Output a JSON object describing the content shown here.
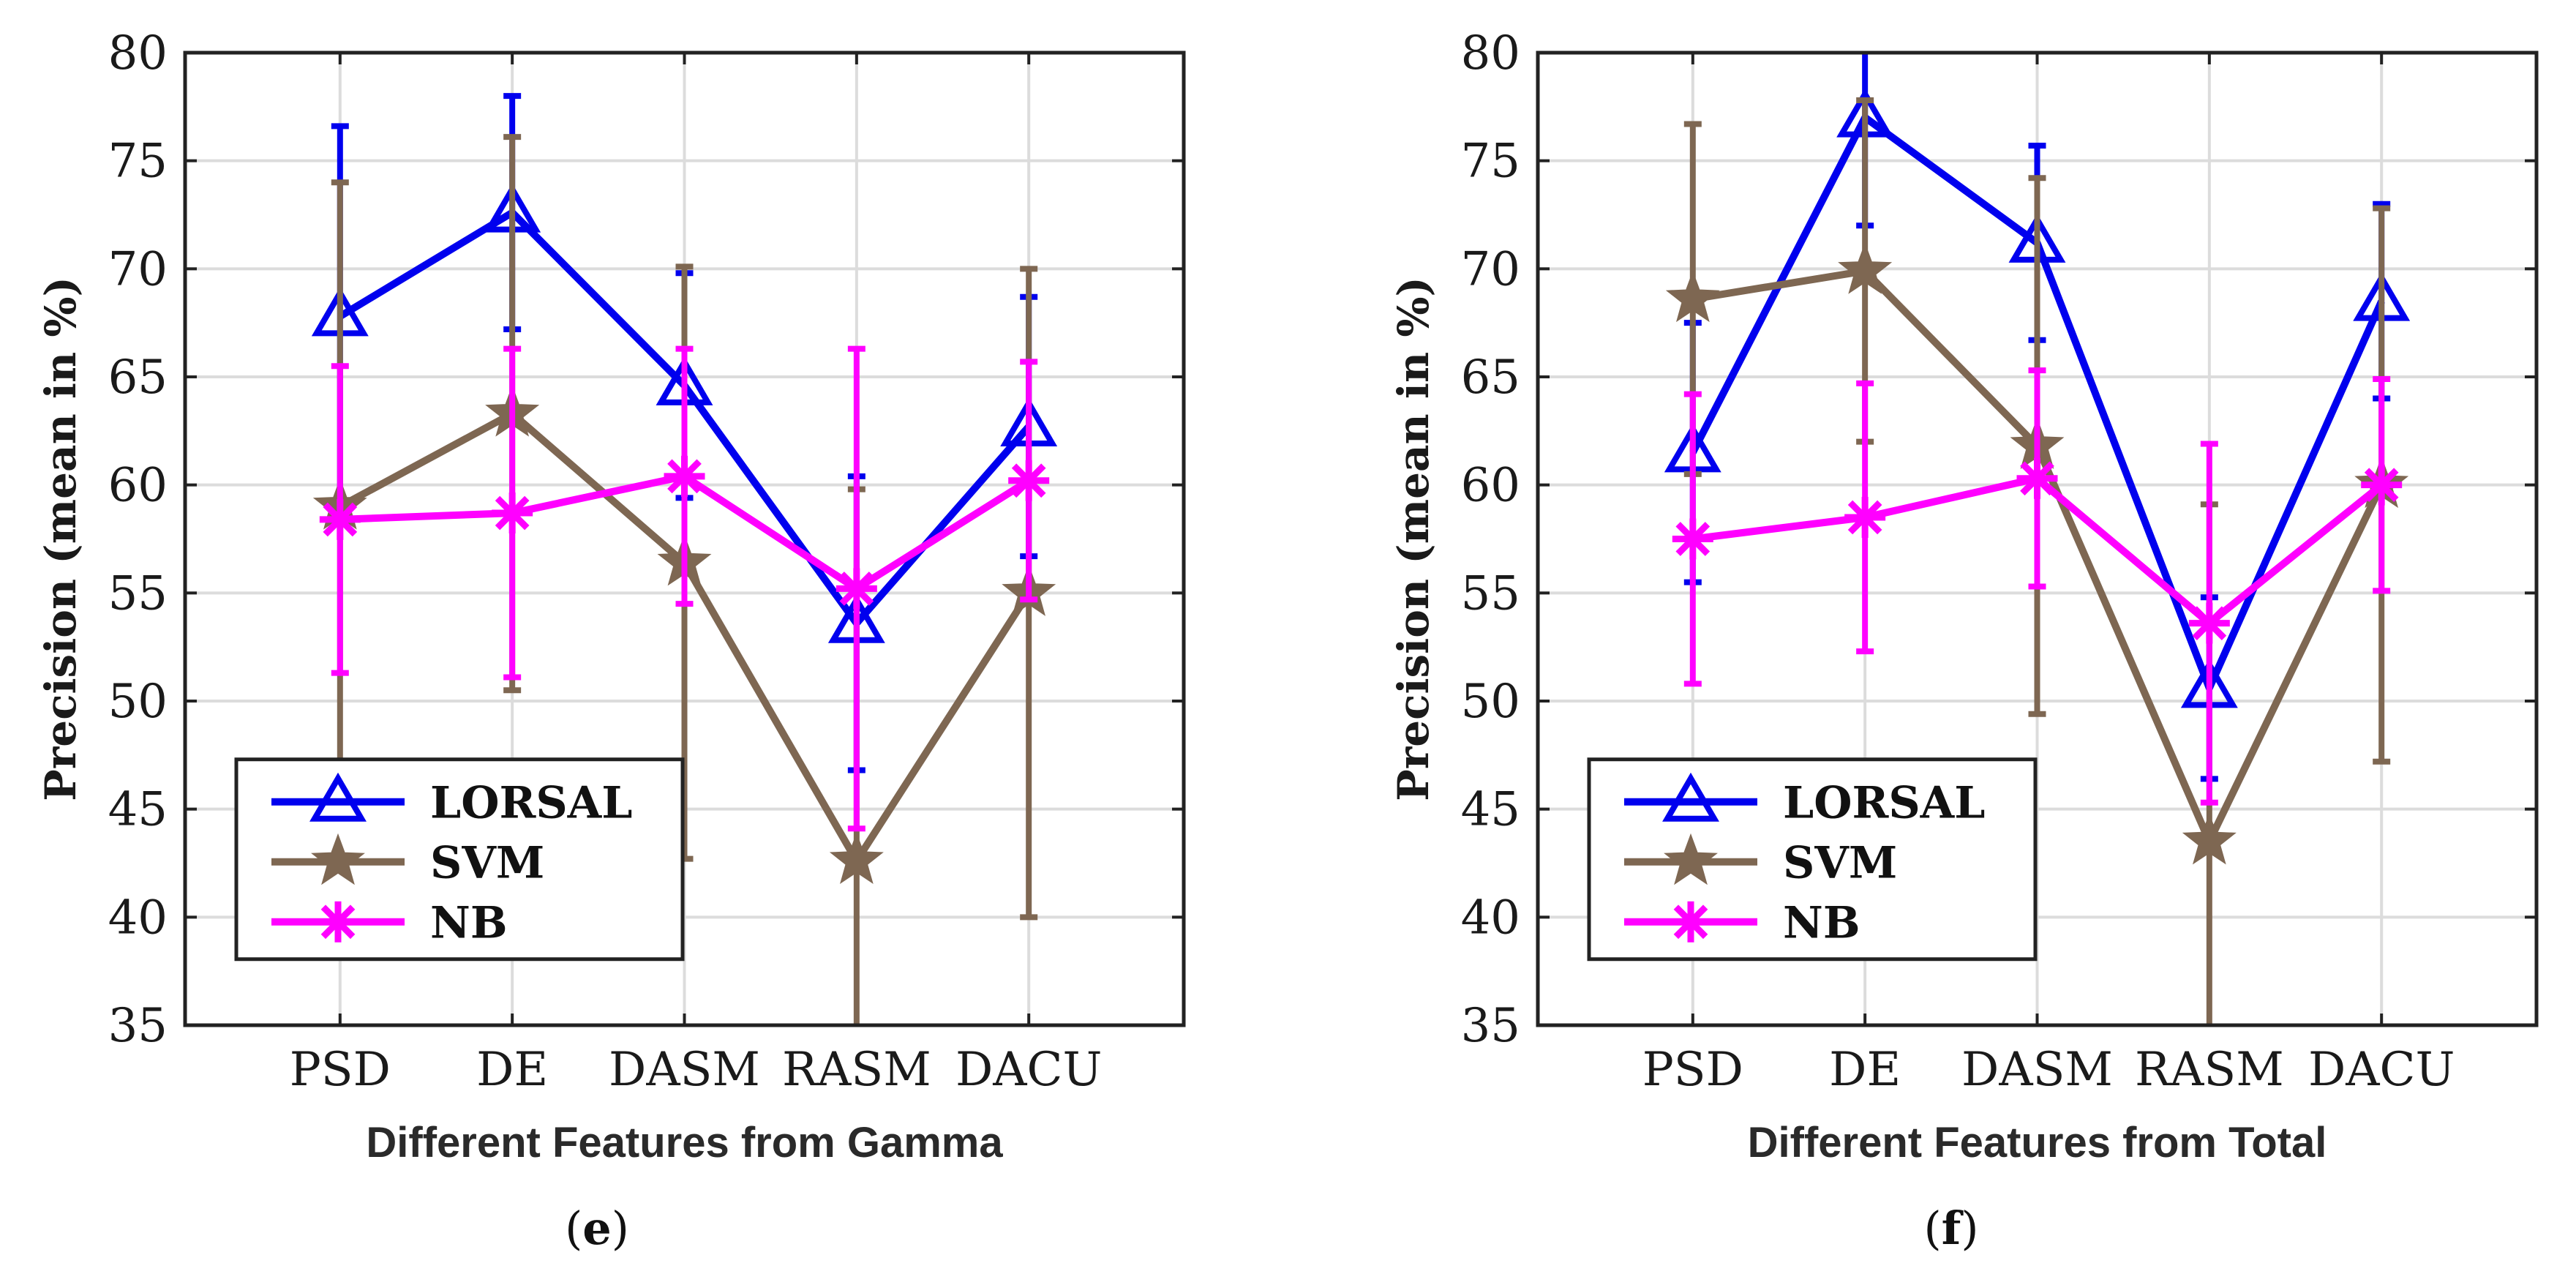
{
  "chart_data": [
    {
      "type": "line",
      "panel": "e",
      "caption_letter": "e",
      "xlabel": "Different Features from Gamma",
      "ylabel": "Precision (mean in %)",
      "categories": [
        "PSD",
        "DE",
        "DASM",
        "RASM",
        "DACU"
      ],
      "ylim": [
        35,
        80
      ],
      "yticks": [
        "35",
        "40",
        "45",
        "50",
        "55",
        "60",
        "65",
        "70",
        "75",
        "80"
      ],
      "grid": true,
      "legend_position": "bottom-left",
      "series": [
        {
          "name": "LORSAL",
          "color": "#0000ee",
          "marker": "triangle",
          "values": [
            67.8,
            72.6,
            64.6,
            53.6,
            62.7
          ],
          "errors": [
            8.8,
            5.4,
            5.2,
            6.8,
            6.0
          ]
        },
        {
          "name": "SVM",
          "color": "#7e6752",
          "marker": "star",
          "values": [
            59.0,
            63.3,
            56.4,
            42.6,
            55.0
          ],
          "errors": [
            15.0,
            12.8,
            13.7,
            17.2,
            15.0
          ]
        },
        {
          "name": "NB",
          "color": "#ff00ff",
          "marker": "asterisk",
          "values": [
            58.4,
            58.7,
            60.4,
            55.2,
            60.2
          ],
          "errors": [
            7.1,
            7.6,
            5.9,
            11.1,
            5.5
          ]
        }
      ]
    },
    {
      "type": "line",
      "panel": "f",
      "caption_letter": "f",
      "xlabel": "Different Features from Total",
      "ylabel": "Precision (mean in %)",
      "categories": [
        "PSD",
        "DE",
        "DASM",
        "RASM",
        "DACU"
      ],
      "ylim": [
        35,
        80
      ],
      "yticks": [
        "35",
        "40",
        "45",
        "50",
        "55",
        "60",
        "65",
        "70",
        "75",
        "80"
      ],
      "grid": true,
      "legend_position": "bottom-left",
      "series": [
        {
          "name": "LORSAL",
          "color": "#0000ee",
          "marker": "triangle",
          "values": [
            61.5,
            77.0,
            71.2,
            50.6,
            68.5
          ],
          "errors": [
            6.0,
            5.0,
            4.5,
            4.2,
            4.5
          ]
        },
        {
          "name": "SVM",
          "color": "#7e6752",
          "marker": "star",
          "values": [
            68.6,
            69.9,
            61.8,
            43.5,
            60.0
          ],
          "errors": [
            8.1,
            7.9,
            12.4,
            15.6,
            12.8
          ]
        },
        {
          "name": "NB",
          "color": "#ff00ff",
          "marker": "asterisk",
          "values": [
            57.5,
            58.5,
            60.3,
            53.6,
            60.0
          ],
          "errors": [
            6.7,
            6.2,
            5.0,
            8.3,
            4.9
          ]
        }
      ]
    }
  ]
}
